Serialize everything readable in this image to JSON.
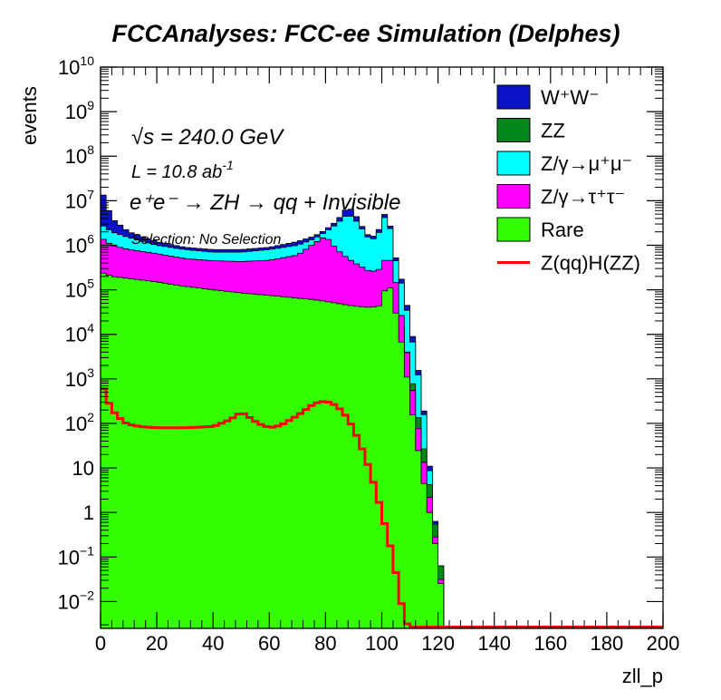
{
  "chart_data": {
    "type": "area",
    "title": "FCCAnalyses: FCC-ee Simulation (Delphes)",
    "xlabel": "zll_p",
    "ylabel": "events",
    "xlim": [
      0,
      200
    ],
    "ylim": [
      0.0025,
      10000000000
    ],
    "yscale": "log",
    "stacked": true,
    "bin_width": 2,
    "x_ticks": [
      0,
      20,
      40,
      60,
      80,
      100,
      120,
      140,
      160,
      180,
      200
    ],
    "x_tick_labels": [
      "0",
      "20",
      "40",
      "60",
      "80",
      "100",
      "120",
      "140",
      "160",
      "180",
      "200"
    ],
    "y_ticks": [
      0.01,
      0.1,
      1,
      10,
      100,
      1000,
      10000,
      100000,
      1000000,
      10000000,
      100000000,
      1000000000,
      10000000000
    ],
    "y_tick_labels": [
      {
        "base": "10",
        "exp": "−2"
      },
      {
        "base": "10",
        "exp": "−1"
      },
      {
        "base": "1",
        "exp": ""
      },
      {
        "base": "10",
        "exp": ""
      },
      {
        "base": "10",
        "exp": "2"
      },
      {
        "base": "10",
        "exp": "3"
      },
      {
        "base": "10",
        "exp": "4"
      },
      {
        "base": "10",
        "exp": "5"
      },
      {
        "base": "10",
        "exp": "6"
      },
      {
        "base": "10",
        "exp": "7"
      },
      {
        "base": "10",
        "exp": "8"
      },
      {
        "base": "10",
        "exp": "9"
      },
      {
        "base": "10",
        "exp": "10"
      }
    ],
    "legend_position": "top-right",
    "annotations": {
      "energy": "√s = 240.0 GeV",
      "lumi": "L = 10.8 ab",
      "lumi_exp": "-1",
      "process": "e⁺e⁻ → ZH → qq + Invisible",
      "selection": "Selection: No Selection"
    },
    "stack_order_bottom_to_top": [
      "Rare",
      "Z/γ→τ⁺τ⁻",
      "ZZ",
      "Z/γ→μ⁺μ⁻",
      "W⁺W⁻"
    ],
    "series": [
      {
        "name": "W⁺W⁻",
        "color": "#0a14c6",
        "kind": "stacked-fill",
        "cumulative_top": {
          "x": [
            0,
            4,
            10,
            20,
            30,
            40,
            50,
            60,
            70,
            76,
            80,
            84,
            86,
            88,
            90,
            92,
            94,
            96,
            98,
            100,
            102,
            104,
            106,
            108,
            110,
            112,
            114,
            116,
            118,
            120,
            122
          ],
          "y": [
            20000000,
            4000000,
            2000000,
            1200000,
            900000,
            800000,
            800000,
            900000,
            1200000,
            1600000,
            2200000,
            3500000,
            5000000,
            7500000,
            5500000,
            3500000,
            2000000,
            1500000,
            1700000,
            3000000,
            8000000,
            900000,
            300000,
            100000,
            20000,
            4000,
            600,
            60,
            2,
            0.2,
            0.02
          ]
        }
      },
      {
        "name": "ZZ",
        "color": "#00891a",
        "kind": "stacked-fill",
        "cumulative_top": {
          "x": [
            0,
            4,
            10,
            20,
            30,
            40,
            50,
            60,
            70,
            76,
            80,
            84,
            88,
            92,
            96,
            100,
            102,
            104,
            106,
            108,
            110,
            112,
            114,
            116,
            118,
            120,
            122
          ],
          "y": [
            500000,
            300000,
            230000,
            190000,
            160000,
            130000,
            110000,
            100000,
            120000,
            200000,
            400000,
            250000,
            120000,
            75000,
            70000,
            120000,
            500000,
            150000,
            25000,
            8000,
            2000,
            300,
            60,
            12,
            1.5,
            0.2,
            0.02
          ]
        }
      },
      {
        "name": "Z/γ→μ⁺μ⁻",
        "color": "#00ffff",
        "kind": "stacked-fill",
        "cumulative_top": {
          "x": [
            0,
            4,
            10,
            20,
            30,
            40,
            50,
            60,
            70,
            76,
            80,
            84,
            86,
            88,
            90,
            92,
            94,
            96,
            98,
            100,
            102,
            104,
            106,
            108,
            110,
            112,
            114,
            116,
            118,
            120,
            122
          ],
          "y": [
            3000000,
            2000000,
            1500000,
            1000000,
            800000,
            700000,
            700000,
            800000,
            1000000,
            1400000,
            2000000,
            3000000,
            4000000,
            5000000,
            4000000,
            3000000,
            1800000,
            1300000,
            1500000,
            2500000,
            7000000,
            800000,
            250000,
            80000,
            15000,
            3000,
            500,
            50,
            1.5,
            0.15,
            0.015
          ]
        }
      },
      {
        "name": "Z/γ→τ⁺τ⁻",
        "color": "#ff00ff",
        "kind": "stacked-fill",
        "cumulative_top": {
          "x": [
            0,
            4,
            10,
            20,
            30,
            40,
            50,
            60,
            70,
            76,
            80,
            84,
            88,
            92,
            96,
            100,
            102,
            104,
            106,
            108,
            110,
            112,
            114,
            116,
            118,
            120,
            122
          ],
          "y": [
            1500000,
            1000000,
            800000,
            650000,
            500000,
            450000,
            430000,
            460000,
            600000,
            1100000,
            1600000,
            800000,
            500000,
            350000,
            250000,
            300000,
            700000,
            300000,
            70000,
            10000,
            1500,
            200,
            30,
            6,
            0.8,
            0.1,
            0.01
          ]
        }
      },
      {
        "name": "Rare",
        "color": "#33ff00",
        "kind": "stacked-fill",
        "cumulative_top": {
          "x": [
            0,
            4,
            10,
            20,
            30,
            40,
            50,
            60,
            70,
            76,
            80,
            84,
            88,
            92,
            96,
            100,
            102,
            104,
            106,
            108,
            110,
            112,
            114,
            116,
            118,
            120,
            122
          ],
          "y": [
            250000,
            200000,
            180000,
            150000,
            120000,
            100000,
            85000,
            75000,
            65000,
            60000,
            55000,
            50000,
            45000,
            42000,
            40000,
            45000,
            200000,
            60000,
            15000,
            3000,
            400,
            60,
            10,
            2,
            0.5,
            0.08,
            0.008
          ]
        }
      },
      {
        "name": "Z(qq)H(ZZ)",
        "color": "#ff0000",
        "kind": "line",
        "x": [
          0,
          1,
          2,
          4,
          6,
          8,
          10,
          14,
          20,
          30,
          40,
          46,
          50,
          52,
          56,
          60,
          64,
          70,
          76,
          80,
          84,
          88,
          92,
          96,
          100,
          104,
          106,
          108,
          110,
          200
        ],
        "y": [
          400,
          600,
          400,
          200,
          150,
          110,
          95,
          85,
          80,
          80,
          85,
          120,
          180,
          150,
          100,
          80,
          90,
          150,
          280,
          320,
          250,
          130,
          40,
          8,
          1,
          0.1,
          0.02,
          0.004,
          0.0025,
          0.0025
        ]
      }
    ]
  }
}
